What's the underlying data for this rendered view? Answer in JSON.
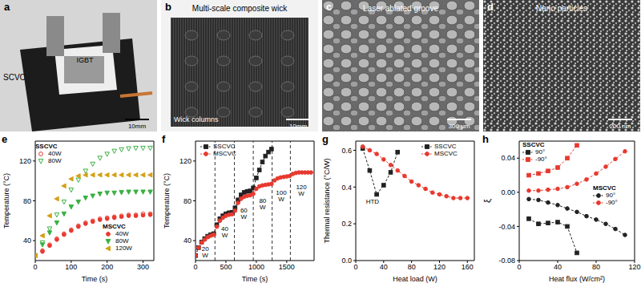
{
  "images": [
    {
      "panel": "a",
      "title": "IGBT",
      "caption": "SCVC",
      "scale": "10mm"
    },
    {
      "panel": "b",
      "title": "Multi-scale composite wick",
      "caption": "Wick columns",
      "scale": "10mm"
    },
    {
      "panel": "c",
      "title": "Laser ablated groove",
      "scale": "300 μm"
    },
    {
      "panel": "d",
      "title": "Nano particles",
      "scale": "200 nm"
    }
  ],
  "chart_data": [
    {
      "panel": "e",
      "type": "line",
      "xlabel": "Time (s)",
      "ylabel": "Temperature (°C)",
      "xlim": [
        0,
        330
      ],
      "xticks": [
        0,
        100,
        200,
        300
      ],
      "ylim": [
        20,
        140
      ],
      "yticks": [
        40,
        80,
        120
      ],
      "series": [
        {
          "name": "40W",
          "group": "SSCVC",
          "color": "#e8392f",
          "marker": "circle_open",
          "line_style": "none",
          "x": [
            0,
            20,
            40,
            60,
            80,
            100,
            120,
            140,
            160,
            180,
            200,
            220,
            240,
            260,
            280,
            300,
            320
          ],
          "values": [
            25,
            30,
            36,
            42,
            47,
            51,
            55,
            58,
            60,
            62,
            63,
            64,
            65,
            66,
            66,
            67,
            67
          ]
        },
        {
          "name": "80W",
          "group": "SSCVC",
          "color": "#3cb043",
          "marker": "triangle_down_open",
          "line_style": "none",
          "x": [
            0,
            20,
            40,
            60,
            80,
            100,
            120,
            140,
            160,
            180,
            200,
            220,
            240,
            260,
            280,
            300,
            320
          ],
          "values": [
            25,
            38,
            52,
            66,
            79,
            91,
            101,
            110,
            117,
            123,
            127,
            130,
            131.5,
            132.5,
            133,
            133,
            133
          ]
        },
        {
          "name": "40W",
          "group": "MSCVC",
          "color": "#e8392f",
          "marker": "circle",
          "line_style": "none",
          "x": [
            0,
            20,
            40,
            60,
            80,
            100,
            120,
            140,
            160,
            180,
            200,
            220,
            240,
            260,
            280,
            300,
            320
          ],
          "values": [
            25,
            29,
            35,
            41,
            46,
            50,
            54,
            57,
            59,
            61,
            62,
            63,
            64,
            65,
            65,
            65.5,
            66
          ]
        },
        {
          "name": "80W",
          "group": "MSCVC",
          "color": "#3cb043",
          "marker": "triangle_down",
          "line_style": "none",
          "x": [
            0,
            20,
            40,
            60,
            80,
            100,
            120,
            140,
            160,
            180,
            200,
            220,
            240,
            260,
            280,
            300,
            320
          ],
          "values": [
            25,
            36,
            48,
            58,
            67,
            74,
            79,
            83,
            85,
            87,
            88,
            88,
            88.5,
            89,
            89,
            89,
            89
          ]
        },
        {
          "name": "120W",
          "group": "MSCVC",
          "color": "#d4a017",
          "marker": "triangle_left",
          "line_style": "none",
          "x": [
            0,
            20,
            40,
            60,
            80,
            100,
            120,
            140,
            160,
            180,
            200,
            220,
            240,
            260,
            280,
            300,
            320
          ],
          "values": [
            25,
            45,
            65,
            82,
            95,
            102,
            105,
            106,
            106,
            106,
            106,
            106,
            106,
            106,
            106,
            106,
            106
          ]
        }
      ]
    },
    {
      "panel": "f",
      "type": "line",
      "xlabel": "Time (s)",
      "ylabel": "Temperature (°C)",
      "xlim": [
        0,
        1950
      ],
      "xticks": [
        0,
        500,
        1000,
        1500
      ],
      "ylim": [
        20,
        140
      ],
      "yticks": [
        40,
        80,
        120
      ],
      "dividers": [
        320,
        640,
        950,
        1260,
        1560
      ],
      "annotations": [
        {
          "text": "20 W",
          "x": 160,
          "y": 30
        },
        {
          "text": "40 W",
          "x": 480,
          "y": 50
        },
        {
          "text": "60 W",
          "x": 795,
          "y": 68
        },
        {
          "text": "80 W",
          "x": 1105,
          "y": 78
        },
        {
          "text": "100 W",
          "x": 1410,
          "y": 86
        },
        {
          "text": "120 W",
          "x": 1740,
          "y": 92
        }
      ],
      "series": [
        {
          "name": "SSCVC",
          "color": "#222222",
          "marker": "square",
          "line_style": "dashed",
          "x": [
            0,
            50,
            100,
            150,
            200,
            250,
            300,
            350,
            400,
            450,
            500,
            550,
            600,
            650,
            700,
            750,
            800,
            850,
            900,
            950,
            1000,
            1050,
            1100,
            1150,
            1200,
            1250
          ],
          "values": [
            25,
            33,
            38.5,
            42,
            44.5,
            46,
            47,
            56,
            62,
            65,
            67,
            68,
            68.5,
            73,
            81,
            86,
            88.5,
            89.5,
            90,
            93,
            103,
            111,
            119,
            125,
            129,
            132
          ]
        },
        {
          "name": "MSCVC",
          "color": "#e8392f",
          "marker": "circle",
          "line_style": "dashed",
          "x": [
            0,
            50,
            100,
            150,
            200,
            250,
            300,
            350,
            400,
            450,
            500,
            550,
            600,
            650,
            700,
            750,
            800,
            850,
            900,
            950,
            1000,
            1050,
            1100,
            1150,
            1200,
            1250,
            1300,
            1350,
            1400,
            1450,
            1500,
            1550,
            1600,
            1650,
            1700,
            1750,
            1800,
            1850,
            1900
          ],
          "values": [
            25,
            33,
            38,
            41,
            43.5,
            45,
            46,
            54,
            60,
            63,
            65,
            66,
            66.5,
            70,
            78,
            82,
            84,
            85,
            85.5,
            87,
            92,
            94.5,
            95.5,
            96,
            96.5,
            97,
            100.5,
            102.5,
            103.5,
            104,
            104.5,
            105,
            107,
            108,
            108.5,
            108.5,
            108.5,
            108.5,
            108.5
          ]
        }
      ]
    },
    {
      "panel": "g",
      "type": "line",
      "xlabel": "Heat load (W)",
      "ylabel": "Thermal resistance (°C/W)",
      "xlim": [
        0,
        170
      ],
      "xticks": [
        0,
        40,
        80,
        120,
        160
      ],
      "ylim": [
        0,
        0.65
      ],
      "yticks": [
        {
          "value": 0,
          "label": "0.0"
        },
        0.2,
        0.4,
        0.6
      ],
      "annotations": [
        {
          "text": "HTD",
          "x": 24,
          "y": 0.31
        }
      ],
      "series": [
        {
          "name": "SSCVC",
          "color": "#222222",
          "marker": "square",
          "line_style": "dashed",
          "x": [
            10,
            20,
            30,
            40,
            50,
            60
          ],
          "values": [
            0.61,
            0.49,
            0.36,
            0.41,
            0.48,
            0.59
          ]
        },
        {
          "name": "MSCVC",
          "color": "#e8392f",
          "marker": "circle",
          "line_style": "dashed",
          "x": [
            10,
            20,
            30,
            40,
            50,
            60,
            70,
            80,
            90,
            100,
            110,
            120,
            130,
            140,
            150,
            160
          ],
          "values": [
            0.62,
            0.6,
            0.58,
            0.55,
            0.52,
            0.49,
            0.46,
            0.43,
            0.41,
            0.39,
            0.37,
            0.36,
            0.35,
            0.34,
            0.34,
            0.34
          ]
        }
      ]
    },
    {
      "panel": "h",
      "type": "line",
      "xlabel": "Heat flux (W/cm²)",
      "ylabel": "ξ",
      "xlim": [
        0,
        120
      ],
      "xticks": [
        0,
        40,
        80,
        120
      ],
      "ylim": [
        -0.08,
        0.06
      ],
      "yticks": [
        -0.08,
        -0.04,
        {
          "value": 0,
          "label": "0.00"
        },
        0.04
      ],
      "series": [
        {
          "name": "90°",
          "group": "SSCVC",
          "color": "#222222",
          "marker": "square",
          "line_style": "dashed",
          "x": [
            10,
            20,
            30,
            40,
            50,
            60
          ],
          "values": [
            -0.031,
            -0.037,
            -0.036,
            -0.035,
            -0.04,
            -0.071
          ]
        },
        {
          "name": "-90°",
          "group": "SSCVC",
          "color": "#e8392f",
          "marker": "square",
          "line_style": "dashed",
          "x": [
            10,
            20,
            30,
            40,
            50,
            60
          ],
          "values": [
            0.02,
            0.022,
            0.025,
            0.029,
            0.04,
            0.055
          ]
        },
        {
          "name": "90°",
          "group": "MSCVC",
          "color": "#222222",
          "marker": "circle",
          "line_style": "dashed",
          "x": [
            10,
            20,
            30,
            40,
            50,
            60,
            70,
            80,
            90,
            100,
            110
          ],
          "values": [
            -0.008,
            -0.009,
            -0.012,
            -0.015,
            -0.019,
            -0.023,
            -0.028,
            -0.032,
            -0.037,
            -0.043,
            -0.05
          ]
        },
        {
          "name": "-90°",
          "group": "MSCVC",
          "color": "#e8392f",
          "marker": "circle",
          "line_style": "dashed",
          "x": [
            10,
            20,
            30,
            40,
            50,
            60,
            70,
            80,
            90,
            100,
            110
          ],
          "values": [
            0.002,
            0.002,
            0.003,
            0.004,
            0.006,
            0.01,
            0.015,
            0.022,
            0.03,
            0.039,
            0.048
          ]
        }
      ]
    }
  ]
}
